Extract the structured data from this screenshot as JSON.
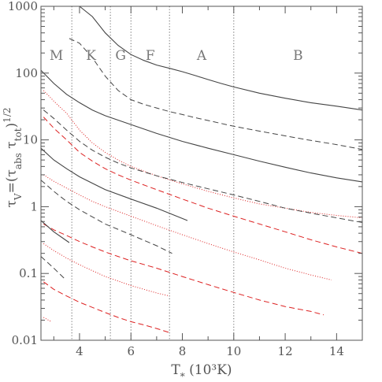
{
  "chart_data": {
    "type": "line",
    "xlabel": "T* (10³K)",
    "ylabel": "τV=(τabs τtot)1/2",
    "xlim": [
      2.5,
      15
    ],
    "ylim": [
      0.01,
      1000
    ],
    "yscale": "log",
    "grid": false,
    "x_ticks": [
      4,
      6,
      8,
      10,
      12,
      14
    ],
    "y_ticks": [
      0.01,
      0.1,
      1,
      10,
      100,
      1000
    ],
    "x_tick_labels": [
      "4",
      "6",
      "8",
      "10",
      "12",
      "14"
    ],
    "y_tick_labels": [
      "0.01",
      "0.1",
      "1",
      "10",
      "100",
      "1000"
    ],
    "spectral_boundaries": [
      3.7,
      5.2,
      6.0,
      7.5,
      10.0
    ],
    "spectral_classes": [
      {
        "label": "M",
        "x": 3.1
      },
      {
        "label": "K",
        "x": 4.45
      },
      {
        "label": "G",
        "x": 5.6
      },
      {
        "label": "F",
        "x": 6.75
      },
      {
        "label": "A",
        "x": 8.75
      },
      {
        "label": "B",
        "x": 12.5
      }
    ],
    "series": [
      {
        "style": "solid",
        "color": "#444444",
        "x": [
          4.0,
          4.5,
          5.0,
          5.5,
          6.0,
          6.5,
          7.0,
          7.5,
          8.0,
          8.5,
          9.0,
          9.5,
          10.0,
          11.0,
          12.0,
          13.0,
          14.0,
          15.0
        ],
        "y": [
          1000,
          700,
          400,
          260,
          190,
          155,
          132,
          118,
          105,
          92,
          80,
          70,
          62,
          50,
          42,
          36,
          32,
          28
        ]
      },
      {
        "style": "dashed",
        "color": "#444444",
        "x": [
          3.6,
          4.0,
          4.5,
          5.0,
          5.5,
          6.0,
          6.5,
          7.0,
          7.5,
          8.0,
          8.5,
          9.0,
          10.0,
          11.0,
          12.0,
          13.0,
          14.0,
          15.0
        ],
        "y": [
          330,
          280,
          170,
          90,
          55,
          40,
          34,
          30,
          26.5,
          24,
          21.5,
          19.5,
          16,
          13.5,
          11.5,
          9.8,
          8.5,
          7.2
        ]
      },
      {
        "style": "solid",
        "color": "#444444",
        "x": [
          2.5,
          3.0,
          3.5,
          4.0,
          4.5,
          5.0,
          6.0,
          7.0,
          8.0,
          9.0,
          10.0,
          11.0,
          12.0,
          13.0,
          14.0,
          15.0
        ],
        "y": [
          110,
          70,
          48,
          36,
          28,
          23,
          17,
          12.5,
          9.5,
          7.5,
          6.0,
          4.8,
          3.9,
          3.2,
          2.7,
          2.35
        ]
      },
      {
        "style": "dotted",
        "color": "#dd2222",
        "x": [
          2.6,
          3.0,
          3.5,
          4.0,
          4.5,
          5.0,
          5.5,
          6.0,
          7.0,
          8.0,
          9.0,
          10.0,
          11.0,
          12.0,
          13.0,
          14.0,
          15.0
        ],
        "y": [
          55,
          38,
          25,
          14,
          9,
          6.5,
          5,
          4,
          2.9,
          2.2,
          1.7,
          1.35,
          1.1,
          0.95,
          0.82,
          0.74,
          0.68
        ]
      },
      {
        "style": "dashed",
        "color": "#444444",
        "x": [
          2.6,
          3.0,
          3.5,
          4.0,
          4.5,
          5.0,
          5.5,
          6.0,
          7.0,
          8.0,
          9.0,
          10.0,
          11.0,
          12.0,
          13.0,
          14.0,
          15.0
        ],
        "y": [
          28,
          21,
          14,
          9.5,
          7,
          5.5,
          4.5,
          3.8,
          2.9,
          2.3,
          1.85,
          1.5,
          1.2,
          0.95,
          0.8,
          0.68,
          0.58
        ]
      },
      {
        "style": "dashed",
        "color": "#dd2222",
        "x": [
          2.6,
          3.0,
          3.5,
          4.0,
          4.5,
          5.0,
          5.5,
          6.0,
          7.0,
          8.0,
          9.0,
          10.0,
          11.0,
          12.0,
          13.0,
          14.0,
          15.0
        ],
        "y": [
          22,
          15,
          10,
          6.5,
          4.8,
          3.7,
          3.0,
          2.5,
          1.8,
          1.3,
          0.95,
          0.72,
          0.55,
          0.42,
          0.32,
          0.25,
          0.2
        ]
      },
      {
        "style": "solid",
        "color": "#444444",
        "x": [
          2.5,
          3.0,
          3.5,
          4.0,
          5.0,
          6.0,
          7.0,
          8.2
        ],
        "y": [
          7.5,
          5,
          3.7,
          2.8,
          1.8,
          1.3,
          0.95,
          0.62
        ]
      },
      {
        "style": "dotted",
        "color": "#dd2222",
        "x": [
          2.6,
          3.0,
          3.5,
          4.0,
          4.5,
          5.0,
          5.5,
          6.0,
          7.0,
          8.0,
          9.0,
          10.0,
          11.0,
          12.0,
          13.0,
          13.8
        ],
        "y": [
          3.0,
          2.4,
          1.9,
          1.5,
          1.2,
          1.0,
          0.85,
          0.72,
          0.52,
          0.38,
          0.28,
          0.21,
          0.16,
          0.12,
          0.095,
          0.08
        ]
      },
      {
        "style": "dashed",
        "color": "#444444",
        "x": [
          2.5,
          3.0,
          3.5,
          4.0,
          5.0,
          6.0,
          7.0,
          7.6
        ],
        "y": [
          2.5,
          1.7,
          1.2,
          0.9,
          0.55,
          0.38,
          0.26,
          0.2
        ]
      },
      {
        "style": "dashed",
        "color": "#dd2222",
        "x": [
          2.6,
          3.0,
          3.5,
          4.0,
          4.5,
          5.0,
          5.5,
          6.0,
          7.0,
          8.0,
          9.0,
          10.0,
          11.0,
          12.0,
          13.0,
          13.5
        ],
        "y": [
          0.55,
          0.45,
          0.37,
          0.3,
          0.25,
          0.21,
          0.18,
          0.155,
          0.12,
          0.09,
          0.068,
          0.052,
          0.04,
          0.032,
          0.027,
          0.024
        ]
      },
      {
        "style": "solid",
        "color": "#444444",
        "x": [
          2.5,
          3.0,
          3.6
        ],
        "y": [
          0.62,
          0.42,
          0.29
        ]
      },
      {
        "style": "dotted",
        "color": "#dd2222",
        "x": [
          2.6,
          3.0,
          3.5,
          4.0,
          4.5,
          5.0,
          5.5,
          6.0,
          6.5,
          7.0,
          7.5
        ],
        "y": [
          0.28,
          0.22,
          0.17,
          0.135,
          0.11,
          0.09,
          0.077,
          0.066,
          0.058,
          0.051,
          0.046
        ]
      },
      {
        "style": "dashed",
        "color": "#444444",
        "x": [
          2.5,
          3.0,
          3.4
        ],
        "y": [
          0.18,
          0.12,
          0.085
        ]
      },
      {
        "style": "dashed",
        "color": "#dd2222",
        "x": [
          2.6,
          3.0,
          3.5,
          4.0,
          4.5,
          5.0,
          5.5,
          6.0,
          6.5,
          7.0,
          7.5
        ],
        "y": [
          0.075,
          0.058,
          0.046,
          0.037,
          0.031,
          0.026,
          0.022,
          0.019,
          0.017,
          0.015,
          0.013
        ]
      },
      {
        "style": "dotted",
        "color": "#dd2222",
        "x": [
          2.6,
          2.9
        ],
        "y": [
          0.022,
          0.019
        ]
      }
    ]
  }
}
